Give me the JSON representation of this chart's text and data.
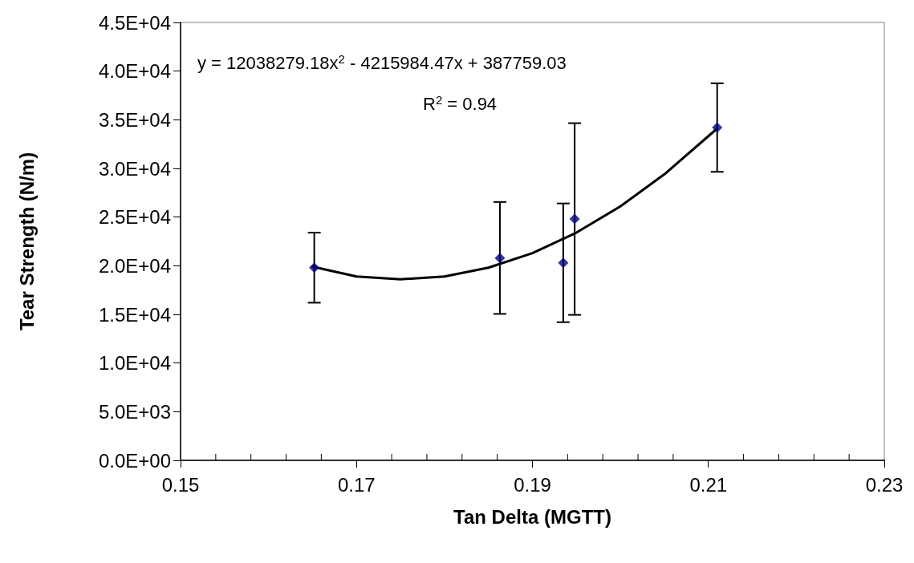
{
  "chart_data": {
    "type": "scatter",
    "xlabel": "Tan Delta (MGTT)",
    "ylabel": "Tear Strength (N/m)",
    "xlim": [
      0.15,
      0.23
    ],
    "xticks": [
      0.15,
      0.17,
      0.19,
      0.21,
      0.23
    ],
    "ylim": [
      0,
      45000
    ],
    "yticks": [
      {
        "value": 0,
        "label": "0.0E+00"
      },
      {
        "value": 5000,
        "label": "5.0E+03"
      },
      {
        "value": 10000,
        "label": "1.0E+04"
      },
      {
        "value": 15000,
        "label": "1.5E+04"
      },
      {
        "value": 20000,
        "label": "2.0E+04"
      },
      {
        "value": 25000,
        "label": "2.5E+04"
      },
      {
        "value": 30000,
        "label": "3.0E+04"
      },
      {
        "value": 35000,
        "label": "3.5E+04"
      },
      {
        "value": 40000,
        "label": "4.0E+04"
      },
      {
        "value": 45000,
        "label": "4.5E+04"
      }
    ],
    "grid": false,
    "marker": "diamond",
    "annotations": [
      "y = 12038279.18x$^{2}$ - 4215984.47x + 387759.03",
      "R$^{2}$ = 0.94"
    ],
    "series": [
      {
        "color": "#000080",
        "x": [
          0.1652,
          0.1863,
          0.1935,
          0.1948,
          0.211
        ],
        "values": [
          19800,
          20800,
          20300,
          24800,
          34200
        ],
        "errors": [
          3600,
          5750,
          6100,
          9850,
          4550
        ]
      },
      {
        "type": "line",
        "color": "#000000",
        "marker": "none",
        "line_style": "solid",
        "x": [
          0.165,
          0.17,
          0.175,
          0.18,
          0.185,
          0.19,
          0.195,
          0.2,
          0.205,
          0.211
        ],
        "values": [
          19900,
          18900,
          18600,
          18900,
          19800,
          21300,
          23400,
          26100,
          29400,
          34100
        ]
      }
    ]
  }
}
